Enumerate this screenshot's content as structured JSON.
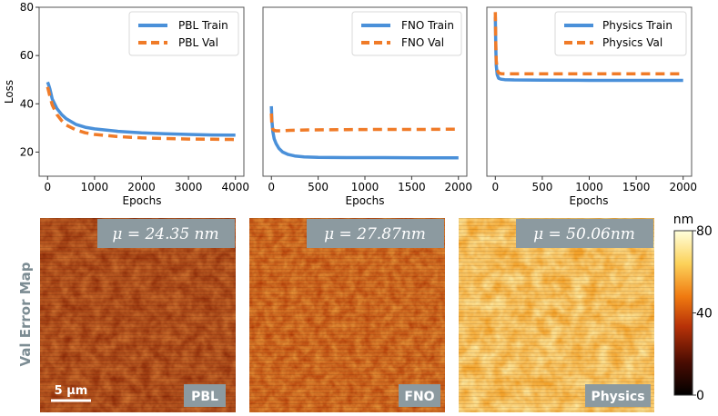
{
  "chart_data": [
    {
      "type": "line",
      "panel": "PBL",
      "xlabel": "Epochs",
      "ylabel": "Loss",
      "xlim": [
        0,
        4000
      ],
      "ylim": [
        10,
        80
      ],
      "xticks": [
        0,
        1000,
        2000,
        3000,
        4000
      ],
      "yticks": [
        20,
        40,
        60,
        80
      ],
      "legend_position": "top-right",
      "series": [
        {
          "name": "PBL Train",
          "style": "solid",
          "color": "#4a90d9",
          "x": [
            0,
            20,
            50,
            100,
            200,
            300,
            400,
            600,
            800,
            1000,
            1500,
            2000,
            2500,
            3000,
            3500,
            4000
          ],
          "y": [
            49,
            48,
            46,
            42,
            38,
            35.5,
            33.8,
            31.5,
            30.3,
            29.6,
            28.6,
            28.0,
            27.6,
            27.3,
            27.1,
            27.0
          ]
        },
        {
          "name": "PBL Val",
          "style": "dashed",
          "color": "#f07b28",
          "x": [
            0,
            20,
            50,
            100,
            200,
            300,
            400,
            600,
            800,
            1000,
            1500,
            2000,
            2500,
            3000,
            3500,
            4000
          ],
          "y": [
            47,
            45.5,
            43,
            39.5,
            35.5,
            33,
            31.2,
            29.2,
            28.0,
            27.3,
            26.4,
            25.9,
            25.6,
            25.4,
            25.3,
            25.2
          ]
        }
      ]
    },
    {
      "type": "line",
      "panel": "FNO",
      "xlabel": "Epochs",
      "ylabel": "",
      "xlim": [
        0,
        2000
      ],
      "ylim": [
        10,
        80
      ],
      "xticks": [
        0,
        500,
        1000,
        1500,
        2000
      ],
      "yticks": [],
      "legend_position": "top-right",
      "series": [
        {
          "name": "FNO Train",
          "style": "solid",
          "color": "#4a90d9",
          "x": [
            0,
            5,
            15,
            30,
            50,
            80,
            120,
            180,
            250,
            350,
            500,
            800,
            1200,
            1600,
            2000
          ],
          "y": [
            39,
            33,
            28.5,
            25.5,
            23.5,
            21.5,
            20.0,
            19.0,
            18.4,
            18.0,
            17.8,
            17.7,
            17.7,
            17.6,
            17.6
          ]
        },
        {
          "name": "FNO Val",
          "style": "dashed",
          "color": "#f07b28",
          "x": [
            0,
            5,
            15,
            30,
            50,
            100,
            200,
            400,
            800,
            1200,
            1600,
            2000
          ],
          "y": [
            36,
            31,
            29.5,
            29,
            28.8,
            28.8,
            29.0,
            29.2,
            29.3,
            29.4,
            29.4,
            29.5
          ]
        }
      ]
    },
    {
      "type": "line",
      "panel": "Physics",
      "xlabel": "Epochs",
      "ylabel": "",
      "xlim": [
        0,
        2000
      ],
      "ylim": [
        10,
        80
      ],
      "xticks": [
        0,
        500,
        1000,
        1500,
        2000
      ],
      "yticks": [],
      "legend_position": "top-right",
      "series": [
        {
          "name": "Physics Train",
          "style": "solid",
          "color": "#4a90d9",
          "x": [
            0,
            5,
            10,
            20,
            35,
            60,
            100,
            200,
            500,
            1000,
            1500,
            2000
          ],
          "y": [
            76,
            64,
            56,
            52,
            50.6,
            50.2,
            50.0,
            49.9,
            49.8,
            49.7,
            49.7,
            49.7
          ]
        },
        {
          "name": "Physics Val",
          "style": "dashed",
          "color": "#f07b28",
          "x": [
            0,
            5,
            10,
            20,
            35,
            60,
            100,
            200,
            500,
            1000,
            1500,
            2000
          ],
          "y": [
            78,
            65,
            58,
            54,
            52.8,
            52.5,
            52.4,
            52.4,
            52.4,
            52.4,
            52.4,
            52.4
          ]
        }
      ]
    }
  ],
  "error_maps": {
    "row_label": "Val Error Map",
    "scale_bar_label": "5 μm",
    "maps": [
      {
        "label": "PBL",
        "mean_label": "μ = 24.35 nm",
        "mean": 24.35,
        "unit": "nm"
      },
      {
        "label": "FNO",
        "mean_label": "μ = 27.87nm",
        "mean": 27.87,
        "unit": "nm"
      },
      {
        "label": "Physics",
        "mean_label": "μ = 50.06nm",
        "mean": 50.06,
        "unit": "nm"
      }
    ]
  },
  "colorbar": {
    "unit": "nm",
    "min": 0,
    "max": 80,
    "ticks": [
      {
        "value": 0,
        "label": "0"
      },
      {
        "value": 40,
        "label": "40"
      },
      {
        "value": 80,
        "label": "80"
      }
    ]
  },
  "colors": {
    "train": "#4a90d9",
    "val": "#f07b28",
    "panel_label_bg": "#8c9aa0"
  }
}
